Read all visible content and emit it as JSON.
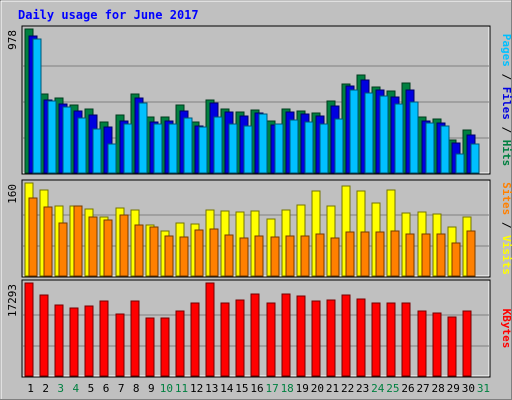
{
  "chart_data": {
    "type": "bar",
    "title": "Daily usage for June 2017",
    "days": [
      "1",
      "2",
      "3",
      "4",
      "5",
      "6",
      "7",
      "8",
      "9",
      "10",
      "11",
      "12",
      "13",
      "14",
      "15",
      "16",
      "17",
      "18",
      "19",
      "20",
      "21",
      "22",
      "23",
      "24",
      "25",
      "26",
      "27",
      "28",
      "29",
      "30",
      "31"
    ],
    "weekend_days": [
      "3",
      "4",
      "10",
      "11",
      "17",
      "18",
      "24",
      "25",
      "31"
    ],
    "panels": [
      {
        "id": "hits_files_pages",
        "max_label": "978",
        "ymax": 978,
        "axis_title": [
          {
            "text": "Pages",
            "color": "#00C0FF"
          },
          {
            "text": " / ",
            "color": "#000000"
          },
          {
            "text": "Files",
            "color": "#0000E0"
          },
          {
            "text": " / ",
            "color": "#000000"
          },
          {
            "text": "Hits",
            "color": "#008040"
          }
        ],
        "series": [
          {
            "name": "Hits",
            "color": "#008040",
            "values": [
              978,
              535,
              510,
              462,
              438,
              343,
              394,
              534,
              379,
              379,
              461,
              345,
              497,
              436,
              415,
              426,
              353,
              432,
              423,
              409,
              491,
              607,
              668,
              582,
              558,
              612,
              377,
              364,
              224,
              290
            ]
          },
          {
            "name": "Files",
            "color": "#0000E0",
            "values": [
              933,
              493,
              472,
              418,
              396,
              315,
              350,
              510,
              346,
              354,
              424,
              321,
              476,
              414,
              390,
              406,
              326,
              411,
              398,
              389,
              456,
              592,
              635,
              562,
              515,
              565,
              352,
              338,
              205,
              260
            ]
          },
          {
            "name": "Pages",
            "color": "#00C0FF",
            "values": [
              913,
              491,
              449,
              374,
              302,
              200,
              333,
              478,
              334,
              331,
              373,
              315,
              379,
              336,
              318,
              399,
              333,
              362,
              344,
              332,
              364,
              566,
              544,
              524,
              471,
              481,
              340,
              321,
              126,
              198
            ]
          }
        ]
      },
      {
        "id": "visits_sites",
        "max_label": "160",
        "ymax": 160,
        "axis_title": [
          {
            "text": "Sites",
            "color": "#FF8000"
          },
          {
            "text": " / ",
            "color": "#000000"
          },
          {
            "text": "Visits",
            "color": "#FFFF00"
          }
        ],
        "series": [
          {
            "name": "Visits",
            "color": "#FFFF00",
            "values": [
              160,
              148,
              120,
              120,
              115,
              101,
              117,
              113,
              88,
              78,
              91,
              90,
              113,
              112,
              110,
              111,
              98,
              114,
              123,
              146,
              121,
              155,
              146,
              125,
              148,
              108,
              110,
              106,
              84,
              102
            ]
          },
          {
            "name": "Sites",
            "color": "#FF8000",
            "values": [
              135,
              118,
              92,
              121,
              101,
              97,
              105,
              87,
              84,
              69,
              67,
              79,
              80,
              71,
              66,
              68,
              67,
              68,
              69,
              72,
              66,
              75,
              75,
              76,
              78,
              72,
              73,
              73,
              57,
              77
            ]
          }
        ]
      },
      {
        "id": "kbytes",
        "max_label": "17293",
        "ymax": 17293,
        "axis_title": [
          {
            "text": "KBytes",
            "color": "#FF0000"
          }
        ],
        "series": [
          {
            "name": "KBytes",
            "color": "#FF0000",
            "values": [
              17293,
              14988,
              13270,
              12581,
              12938,
              13956,
              11534,
              13868,
              10810,
              10810,
              12152,
              13548,
              17293,
              13528,
              14123,
              15224,
              13528,
              15164,
              14800,
              13888,
              14040,
              14988,
              14330,
              13528,
              13528,
              13528,
              12042,
              11640,
              10924,
              12041
            ]
          }
        ]
      }
    ]
  }
}
